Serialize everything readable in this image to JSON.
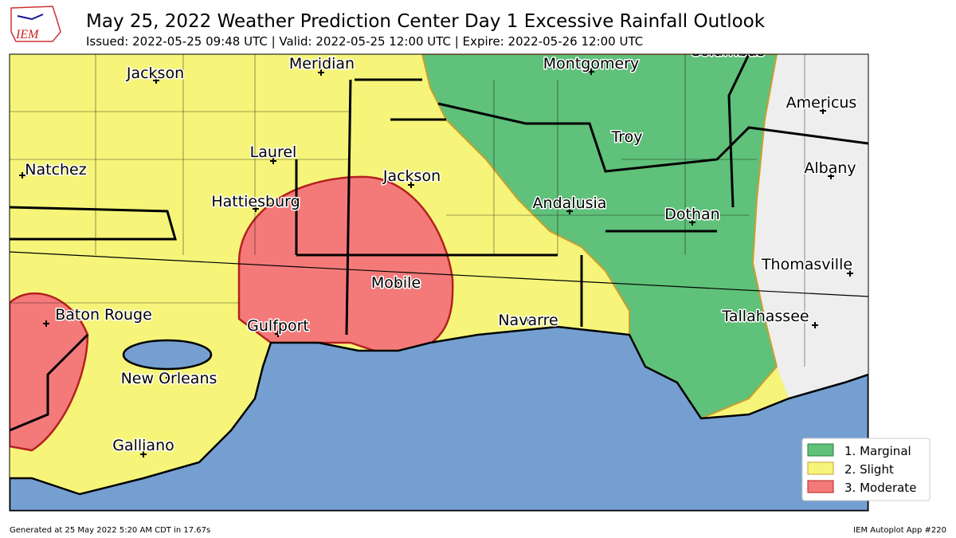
{
  "header": {
    "title": "May 25, 2022 Weather Prediction Center Day 1 Excessive Rainfall Outlook",
    "subtitle": "Issued: 2022-05-25 09:48 UTC | Valid: 2022-05-25 12:00 UTC | Expire: 2022-05-26 12:00 UTC",
    "logo": "IEM"
  },
  "cities": [
    "Columbus",
    "Jackson",
    "Meridian",
    "Montgomery",
    "Americus",
    "Troy",
    "Laurel",
    "Natchez",
    "Jackson",
    "Albany",
    "Hattiesburg",
    "Andalusia",
    "Dothan",
    "Thomasville",
    "Mobile",
    "Baton Rouge",
    "Gulfport",
    "Navarre",
    "Tallahassee",
    "New Orleans",
    "Galliano"
  ],
  "legend": [
    "1. Marginal",
    "2. Slight",
    "3. Moderate"
  ],
  "footer": {
    "left": "Generated at 25 May 2022 5:20 AM CDT in 17.67s",
    "right": "IEM Autoplot App #220"
  }
}
